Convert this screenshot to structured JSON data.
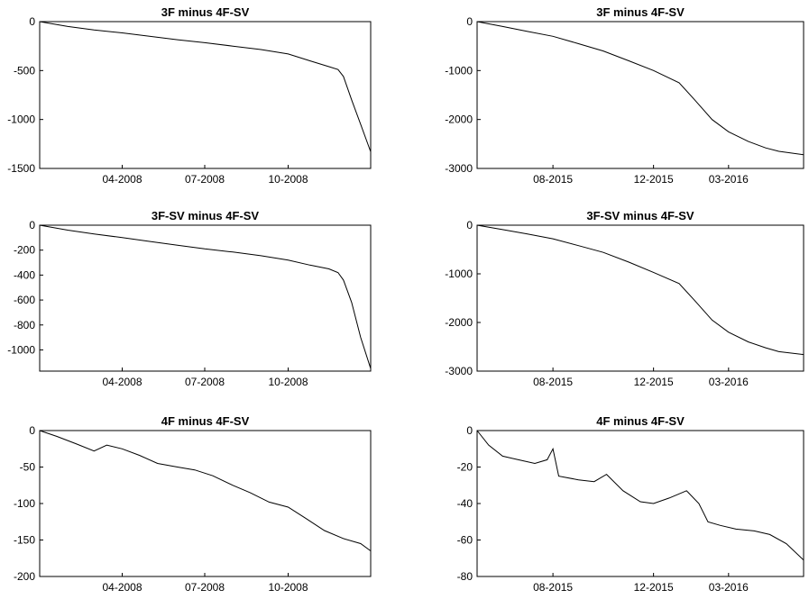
{
  "chart_data": [
    {
      "type": "line",
      "title": "3F minus 4F-SV",
      "xlabel": "",
      "ylabel": "",
      "xlim": [
        "2008-01-01",
        "2008-12-31"
      ],
      "ylim": [
        -1500,
        0
      ],
      "yticks": [
        0,
        -500,
        -1000,
        -1500
      ],
      "xticks": [
        "04-2008",
        "07-2008",
        "10-2008"
      ],
      "xtick_dates": [
        "2008-04-01",
        "2008-07-01",
        "2008-10-01"
      ],
      "grid": false,
      "series": [
        {
          "x": [
            "2008-01-01",
            "2008-02-01",
            "2008-03-01",
            "2008-04-01",
            "2008-05-01",
            "2008-06-01",
            "2008-07-01",
            "2008-08-01",
            "2008-09-01",
            "2008-10-01",
            "2008-10-25",
            "2008-11-15",
            "2008-11-25",
            "2008-12-01",
            "2008-12-10",
            "2008-12-20",
            "2008-12-31"
          ],
          "y": [
            0,
            -50,
            -85,
            -115,
            -150,
            -185,
            -215,
            -250,
            -285,
            -330,
            -400,
            -460,
            -490,
            -560,
            -800,
            -1050,
            -1330
          ]
        }
      ]
    },
    {
      "type": "line",
      "title": "3F minus 4F-SV",
      "xlabel": "",
      "ylabel": "",
      "xlim": [
        "2015-05-01",
        "2016-05-31"
      ],
      "ylim": [
        -3000,
        0
      ],
      "yticks": [
        0,
        -1000,
        -2000,
        -3000
      ],
      "xticks": [
        "08-2015",
        "12-2015",
        "03-2016"
      ],
      "xtick_dates": [
        "2015-08-01",
        "2015-12-01",
        "2016-03-01"
      ],
      "grid": false,
      "series": [
        {
          "x": [
            "2015-05-01",
            "2015-06-01",
            "2015-07-01",
            "2015-08-01",
            "2015-09-01",
            "2015-10-01",
            "2015-11-01",
            "2015-12-01",
            "2016-01-01",
            "2016-01-20",
            "2016-02-10",
            "2016-03-01",
            "2016-03-25",
            "2016-04-15",
            "2016-05-01",
            "2016-05-31"
          ],
          "y": [
            0,
            -100,
            -200,
            -300,
            -450,
            -600,
            -800,
            -1000,
            -1250,
            -1600,
            -2000,
            -2250,
            -2450,
            -2580,
            -2650,
            -2720
          ]
        }
      ]
    },
    {
      "type": "line",
      "title": "3F-SV minus 4F-SV",
      "xlabel": "",
      "ylabel": "",
      "xlim": [
        "2008-01-01",
        "2008-12-31"
      ],
      "ylim": [
        -1170,
        0
      ],
      "yticks": [
        0,
        -200,
        -400,
        -600,
        -800,
        -1000
      ],
      "xticks": [
        "04-2008",
        "07-2008",
        "10-2008"
      ],
      "xtick_dates": [
        "2008-04-01",
        "2008-07-01",
        "2008-10-01"
      ],
      "grid": false,
      "series": [
        {
          "x": [
            "2008-01-01",
            "2008-02-01",
            "2008-03-01",
            "2008-04-01",
            "2008-05-01",
            "2008-06-01",
            "2008-07-01",
            "2008-08-01",
            "2008-09-01",
            "2008-10-01",
            "2008-10-25",
            "2008-11-15",
            "2008-11-25",
            "2008-12-01",
            "2008-12-10",
            "2008-12-20",
            "2008-12-31"
          ],
          "y": [
            0,
            -40,
            -70,
            -100,
            -130,
            -160,
            -190,
            -215,
            -245,
            -280,
            -320,
            -350,
            -380,
            -440,
            -620,
            -900,
            -1150
          ]
        }
      ]
    },
    {
      "type": "line",
      "title": "3F-SV minus 4F-SV",
      "xlabel": "",
      "ylabel": "",
      "xlim": [
        "2015-05-01",
        "2016-05-31"
      ],
      "ylim": [
        -3000,
        0
      ],
      "yticks": [
        0,
        -1000,
        -2000,
        -3000
      ],
      "xticks": [
        "08-2015",
        "12-2015",
        "03-2016"
      ],
      "xtick_dates": [
        "2015-08-01",
        "2015-12-01",
        "2016-03-01"
      ],
      "grid": false,
      "series": [
        {
          "x": [
            "2015-05-01",
            "2015-06-01",
            "2015-07-01",
            "2015-08-01",
            "2015-09-01",
            "2015-10-01",
            "2015-11-01",
            "2015-12-01",
            "2016-01-01",
            "2016-01-20",
            "2016-02-10",
            "2016-03-01",
            "2016-03-25",
            "2016-04-15",
            "2016-05-01",
            "2016-05-31"
          ],
          "y": [
            0,
            -90,
            -180,
            -280,
            -420,
            -560,
            -760,
            -970,
            -1200,
            -1550,
            -1950,
            -2200,
            -2400,
            -2520,
            -2600,
            -2660
          ]
        }
      ]
    },
    {
      "type": "line",
      "title": "4F minus 4F-SV",
      "xlabel": "",
      "ylabel": "",
      "xlim": [
        "2008-01-01",
        "2008-12-31"
      ],
      "ylim": [
        -200,
        0
      ],
      "yticks": [
        0,
        -50,
        -100,
        -150,
        -200
      ],
      "xticks": [
        "04-2008",
        "07-2008",
        "10-2008"
      ],
      "xtick_dates": [
        "2008-04-01",
        "2008-07-01",
        "2008-10-01"
      ],
      "grid": false,
      "series": [
        {
          "x": [
            "2008-01-01",
            "2008-01-20",
            "2008-02-10",
            "2008-03-01",
            "2008-03-15",
            "2008-04-01",
            "2008-04-20",
            "2008-05-10",
            "2008-06-01",
            "2008-06-20",
            "2008-07-10",
            "2008-08-01",
            "2008-08-20",
            "2008-09-10",
            "2008-10-01",
            "2008-10-20",
            "2008-11-10",
            "2008-12-01",
            "2008-12-20",
            "2008-12-31"
          ],
          "y": [
            0,
            -8,
            -18,
            -28,
            -20,
            -25,
            -34,
            -45,
            -50,
            -54,
            -62,
            -75,
            -85,
            -98,
            -105,
            -120,
            -137,
            -148,
            -155,
            -165
          ]
        }
      ]
    },
    {
      "type": "line",
      "title": "4F minus 4F-SV",
      "xlabel": "",
      "ylabel": "",
      "xlim": [
        "2015-05-01",
        "2016-05-31"
      ],
      "ylim": [
        -80,
        0
      ],
      "yticks": [
        0,
        -20,
        -40,
        -60,
        -80
      ],
      "xticks": [
        "08-2015",
        "12-2015",
        "03-2016"
      ],
      "xtick_dates": [
        "2015-08-01",
        "2015-12-01",
        "2016-03-01"
      ],
      "grid": false,
      "series": [
        {
          "x": [
            "2015-05-01",
            "2015-05-15",
            "2015-06-01",
            "2015-06-20",
            "2015-07-10",
            "2015-07-25",
            "2015-08-01",
            "2015-08-08",
            "2015-09-01",
            "2015-09-20",
            "2015-10-05",
            "2015-10-25",
            "2015-11-15",
            "2015-12-01",
            "2015-12-20",
            "2016-01-10",
            "2016-01-25",
            "2016-02-05",
            "2016-02-20",
            "2016-03-10",
            "2016-04-01",
            "2016-04-20",
            "2016-05-10",
            "2016-05-31"
          ],
          "y": [
            0,
            -8,
            -14,
            -16,
            -18,
            -16,
            -10,
            -25,
            -27,
            -28,
            -24,
            -33,
            -39,
            -40,
            -37,
            -33,
            -40,
            -50,
            -52,
            -54,
            -55,
            -57,
            -62,
            -71
          ]
        }
      ]
    }
  ]
}
